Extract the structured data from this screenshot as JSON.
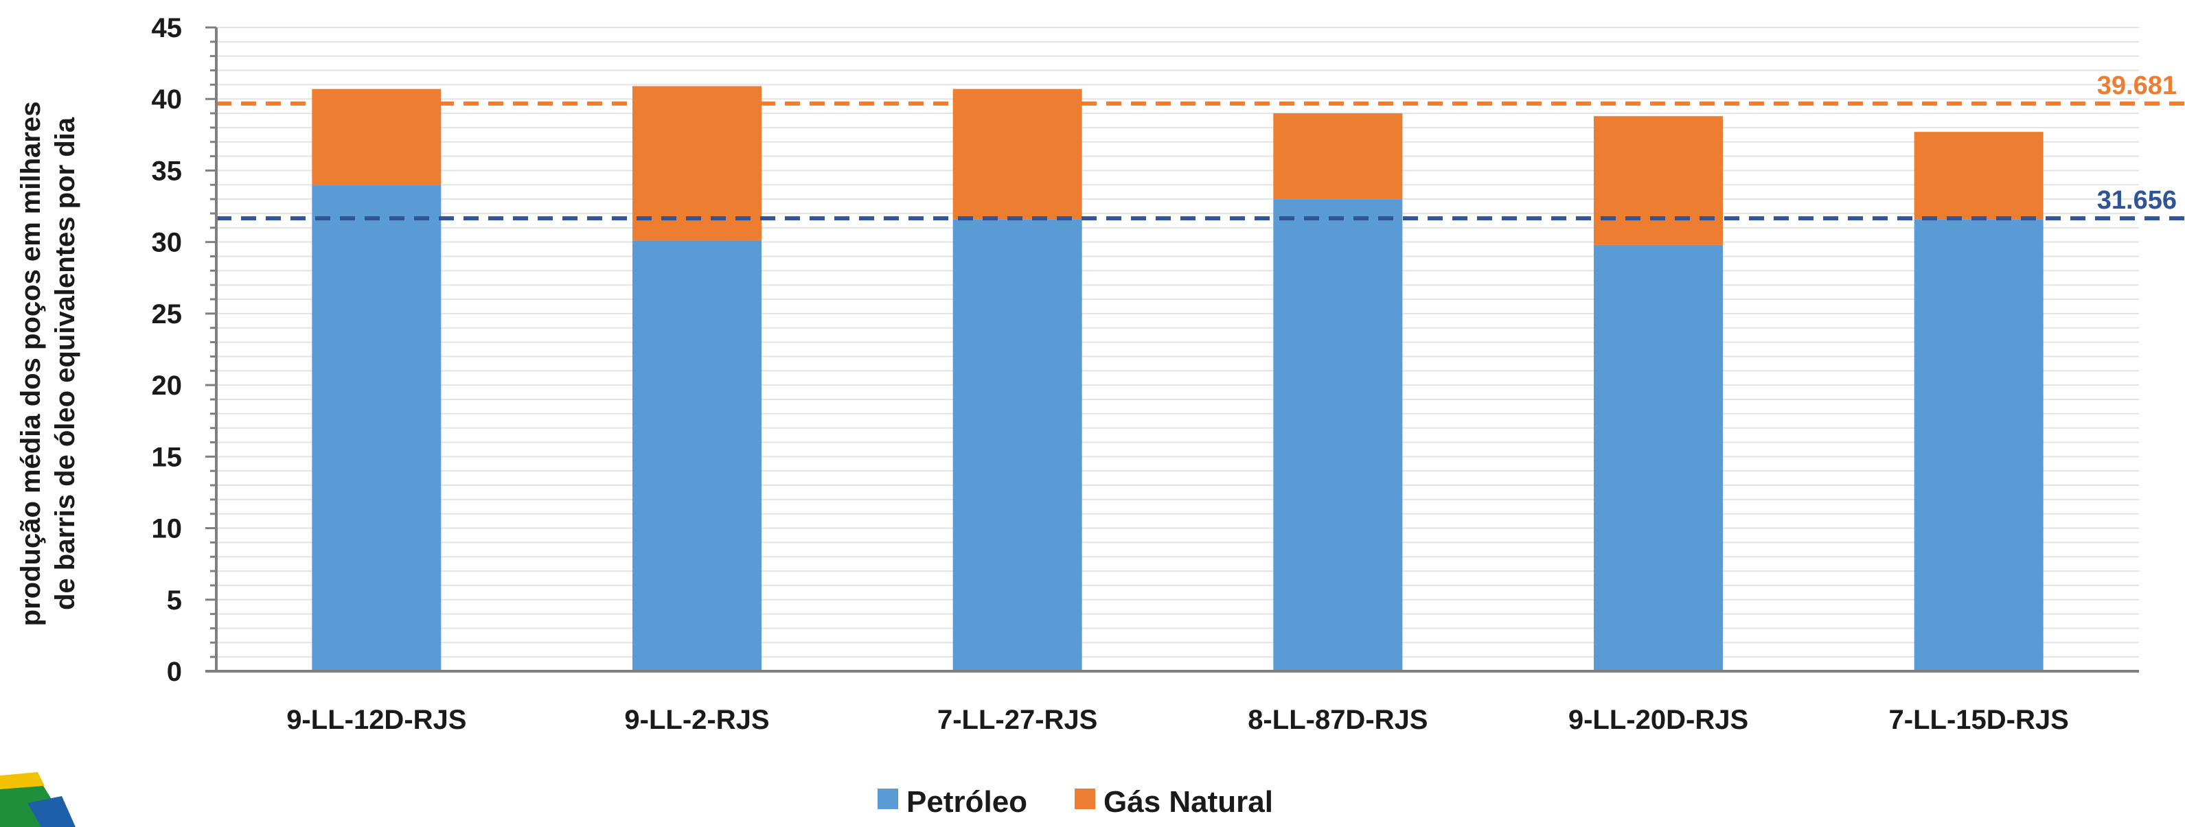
{
  "chart_data": {
    "type": "bar",
    "stacked": true,
    "categories": [
      "9-LL-12D-RJS",
      "9-LL-2-RJS",
      "7-LL-27-RJS",
      "8-LL-87D-RJS",
      "9-LL-20D-RJS",
      "7-LL-15D-RJS"
    ],
    "series": [
      {
        "name": "Petróleo",
        "color": "#5B9BD5",
        "values": [
          34.0,
          30.1,
          31.6,
          33.0,
          29.8,
          31.6
        ]
      },
      {
        "name": "Gás Natural",
        "color": "#ED7D31",
        "values": [
          6.7,
          10.8,
          9.1,
          6.0,
          9.0,
          6.1
        ]
      }
    ],
    "reference_lines": [
      {
        "value": 39.681,
        "label": "39.681",
        "color": "#ED7D31"
      },
      {
        "value": 31.656,
        "label": "31.656",
        "color": "#2F5597"
      }
    ],
    "title": "",
    "xlabel": "",
    "ylabel_lines": [
      "produção média dos poços  em milhares",
      "de barris de óleo equivalentes por dia"
    ],
    "ylim": [
      0,
      45
    ],
    "yticks": [
      0,
      5,
      10,
      15,
      20,
      25,
      30,
      35,
      40,
      45
    ],
    "grid": true,
    "legend_position": "bottom-center"
  }
}
